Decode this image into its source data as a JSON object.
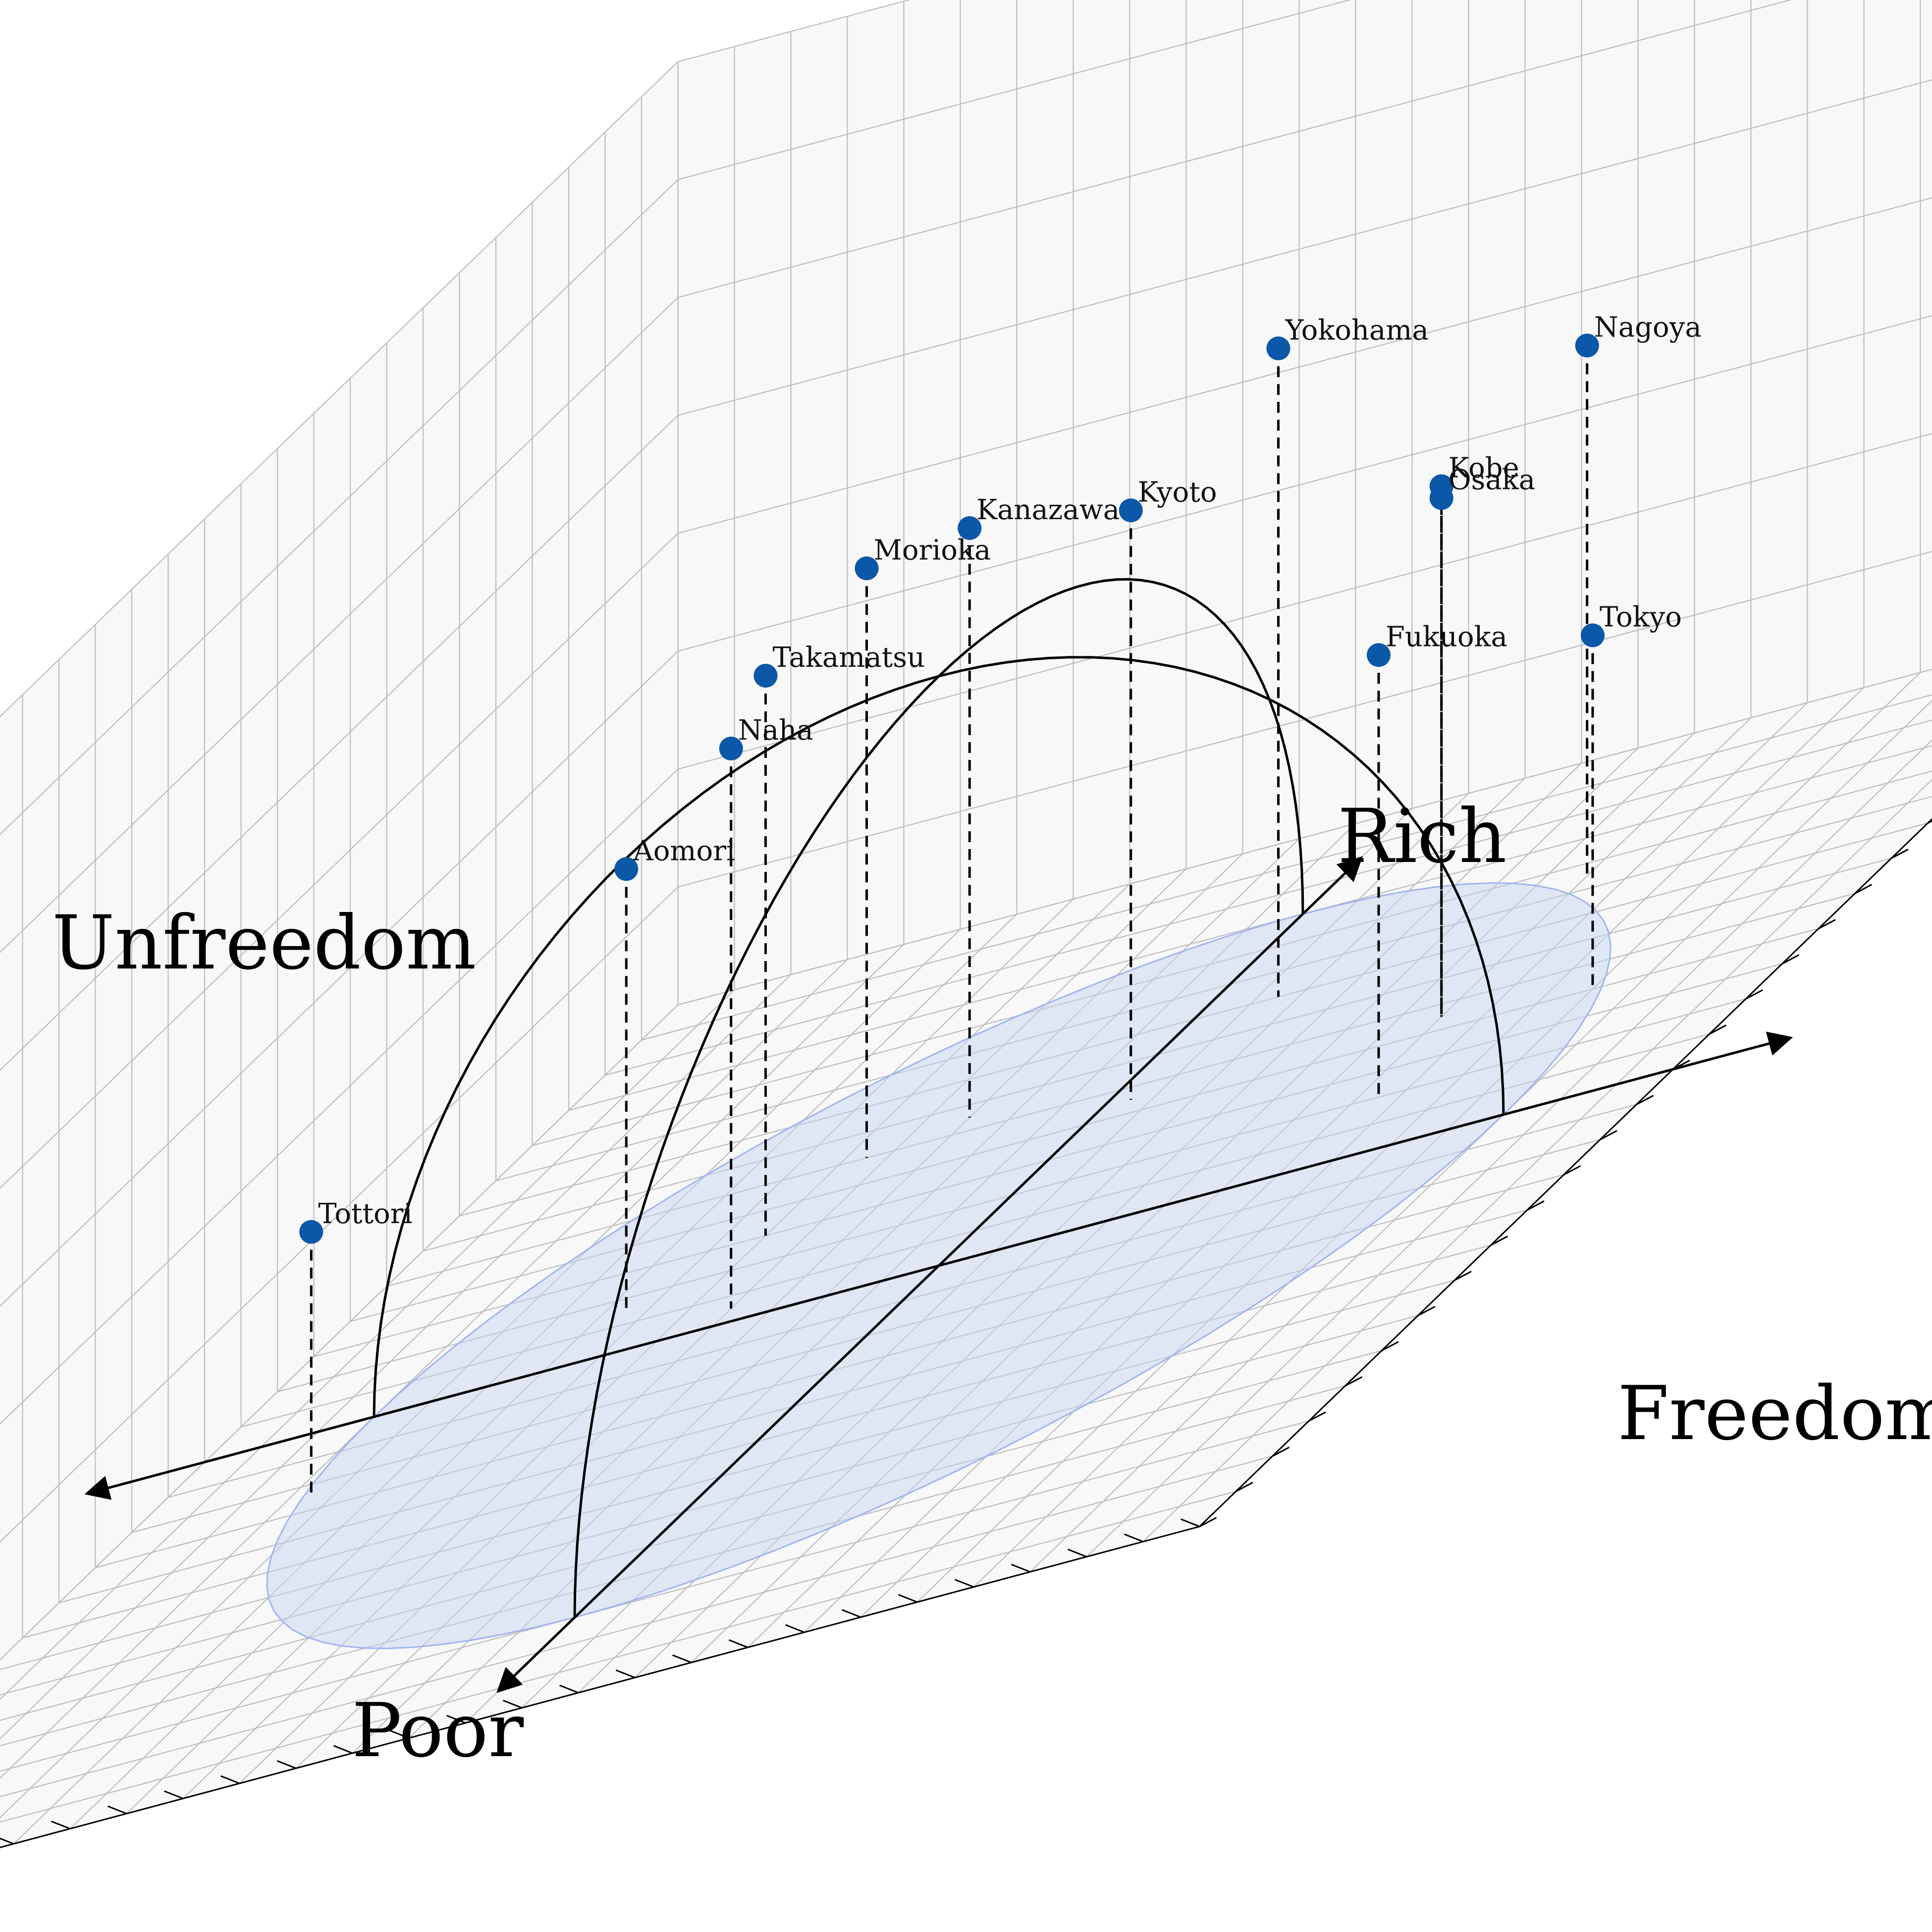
{
  "chart_data": {
    "type": "scatter",
    "title": "",
    "axis_labels": {
      "freedom": "Freedom",
      "unfreedom": "Unfreedom",
      "rich": "Rich",
      "poor": "Poor"
    },
    "grid": true,
    "points": [
      {
        "label": "Tottori",
        "x": -0.95,
        "y": -0.25,
        "z": 0.45
      },
      {
        "label": "Aomori",
        "x": -0.65,
        "y": 0.15,
        "z": 0.75
      },
      {
        "label": "Morioka",
        "x": -0.45,
        "y": 0.5,
        "z": 1.0
      },
      {
        "label": "Takamatsu",
        "x": -0.5,
        "y": 0.3,
        "z": 0.95
      },
      {
        "label": "Kanazawa",
        "x": -0.3,
        "y": 0.55,
        "z": 1.0
      },
      {
        "label": "Naha",
        "x": -0.4,
        "y": 0.05,
        "z": 0.95
      },
      {
        "label": "Yokohama",
        "x": 0.15,
        "y": 0.7,
        "z": 1.1
      },
      {
        "label": "Kyoto",
        "x": 0.05,
        "y": 0.45,
        "z": 1.0
      },
      {
        "label": "Nagoya",
        "x": 0.6,
        "y": 0.85,
        "z": 0.9
      },
      {
        "label": "Kobe",
        "x": 0.6,
        "y": 0.45,
        "z": 0.9
      },
      {
        "label": "Osaka",
        "x": 0.6,
        "y": 0.45,
        "z": 0.88
      },
      {
        "label": "Fukuoka",
        "x": 0.65,
        "y": 0.2,
        "z": 0.75
      },
      {
        "label": "Tokyo",
        "x": 0.9,
        "y": 0.4,
        "z": 0.6
      }
    ],
    "colors": {
      "point": "#0b57a8",
      "disk_fill": "#c8d6f0",
      "disk_edge": "#9fb4f0",
      "grid": "#bdbdbd",
      "pane": "#f2f2f2"
    }
  }
}
